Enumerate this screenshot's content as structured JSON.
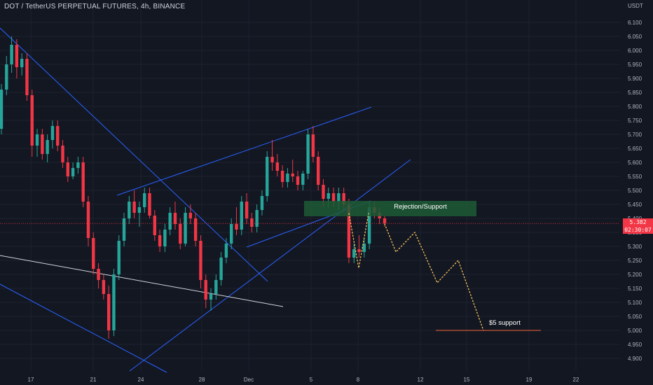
{
  "header": {
    "title": "DOT / TetherUS PERPETUAL FUTURES, 4h, BINANCE"
  },
  "price_axis": {
    "currency": "USDT",
    "labels": [
      "6.100",
      "6.050",
      "6.000",
      "5.950",
      "5.900",
      "5.850",
      "5.800",
      "5.750",
      "5.700",
      "5.650",
      "5.600",
      "5.550",
      "5.500",
      "5.450",
      "5.400",
      "5.350",
      "5.300",
      "5.250",
      "5.200",
      "5.150",
      "5.100",
      "5.050",
      "5.000",
      "4.950",
      "4.900"
    ],
    "current_price": "5.382",
    "countdown": "02:30:07"
  },
  "time_axis": {
    "labels": [
      "17",
      "21",
      "24",
      "28",
      "Dec",
      "5",
      "8",
      "12",
      "15",
      "19",
      "22"
    ]
  },
  "annotations": {
    "zone_label": "Rejection/Support",
    "support_label": "$5 support"
  },
  "colors": {
    "background": "#131722",
    "up_candle": "#26a69a",
    "down_candle": "#f23645",
    "trendline": "#2962ff",
    "white_line": "#d1d4dc",
    "zone_fill": "#1e5a35",
    "projection": "#f7c35b",
    "support_line": "#f0643c"
  },
  "chart_data": {
    "type": "candlestick",
    "symbol": "DOT / TetherUS PERPETUAL FUTURES",
    "timeframe": "4h",
    "exchange": "BINANCE",
    "ylim": [
      4.88,
      6.12
    ],
    "last_price": 5.382,
    "candles": [
      [
        5.72,
        5.88,
        5.7,
        5.86
      ],
      [
        5.86,
        5.98,
        5.84,
        5.95
      ],
      [
        5.95,
        6.05,
        5.92,
        6.02
      ],
      [
        6.02,
        6.04,
        5.9,
        5.94
      ],
      [
        5.94,
        5.99,
        5.91,
        5.97
      ],
      [
        5.97,
        5.99,
        5.82,
        5.84
      ],
      [
        5.84,
        5.86,
        5.62,
        5.66
      ],
      [
        5.66,
        5.72,
        5.62,
        5.7
      ],
      [
        5.7,
        5.72,
        5.61,
        5.63
      ],
      [
        5.63,
        5.7,
        5.6,
        5.68
      ],
      [
        5.68,
        5.75,
        5.65,
        5.73
      ],
      [
        5.73,
        5.75,
        5.64,
        5.66
      ],
      [
        5.66,
        5.68,
        5.58,
        5.6
      ],
      [
        5.6,
        5.62,
        5.53,
        5.55
      ],
      [
        5.55,
        5.6,
        5.54,
        5.58
      ],
      [
        5.58,
        5.62,
        5.56,
        5.6
      ],
      [
        5.6,
        5.62,
        5.44,
        5.46
      ],
      [
        5.46,
        5.48,
        5.3,
        5.33
      ],
      [
        5.33,
        5.35,
        5.2,
        5.22
      ],
      [
        5.22,
        5.24,
        5.15,
        5.18
      ],
      [
        5.18,
        5.2,
        5.11,
        5.13
      ],
      [
        5.13,
        5.16,
        4.97,
        5.0
      ],
      [
        5.0,
        5.22,
        4.98,
        5.2
      ],
      [
        5.2,
        5.34,
        5.18,
        5.32
      ],
      [
        5.32,
        5.42,
        5.3,
        5.4
      ],
      [
        5.4,
        5.48,
        5.38,
        5.46
      ],
      [
        5.46,
        5.5,
        5.4,
        5.42
      ],
      [
        5.42,
        5.46,
        5.37,
        5.44
      ],
      [
        5.44,
        5.51,
        5.42,
        5.49
      ],
      [
        5.49,
        5.51,
        5.4,
        5.41
      ],
      [
        5.41,
        5.43,
        5.32,
        5.34
      ],
      [
        5.34,
        5.36,
        5.28,
        5.3
      ],
      [
        5.3,
        5.38,
        5.28,
        5.36
      ],
      [
        5.36,
        5.44,
        5.34,
        5.42
      ],
      [
        5.42,
        5.46,
        5.36,
        5.38
      ],
      [
        5.38,
        5.4,
        5.29,
        5.31
      ],
      [
        5.31,
        5.44,
        5.3,
        5.42
      ],
      [
        5.42,
        5.45,
        5.38,
        5.4
      ],
      [
        5.4,
        5.42,
        5.3,
        5.32
      ],
      [
        5.32,
        5.34,
        5.15,
        5.18
      ],
      [
        5.18,
        5.2,
        5.08,
        5.11
      ],
      [
        5.11,
        5.15,
        5.07,
        5.13
      ],
      [
        5.13,
        5.2,
        5.11,
        5.18
      ],
      [
        5.18,
        5.28,
        5.16,
        5.26
      ],
      [
        5.26,
        5.33,
        5.24,
        5.31
      ],
      [
        5.31,
        5.4,
        5.29,
        5.38
      ],
      [
        5.38,
        5.44,
        5.34,
        5.36
      ],
      [
        5.36,
        5.48,
        5.34,
        5.46
      ],
      [
        5.46,
        5.49,
        5.38,
        5.4
      ],
      [
        5.4,
        5.42,
        5.35,
        5.37
      ],
      [
        5.37,
        5.45,
        5.35,
        5.43
      ],
      [
        5.43,
        5.5,
        5.41,
        5.48
      ],
      [
        5.48,
        5.64,
        5.46,
        5.62
      ],
      [
        5.62,
        5.68,
        5.57,
        5.6
      ],
      [
        5.6,
        5.63,
        5.55,
        5.57
      ],
      [
        5.57,
        5.59,
        5.51,
        5.53
      ],
      [
        5.53,
        5.58,
        5.51,
        5.56
      ],
      [
        5.56,
        5.61,
        5.53,
        5.55
      ],
      [
        5.55,
        5.57,
        5.5,
        5.52
      ],
      [
        5.52,
        5.57,
        5.5,
        5.56
      ],
      [
        5.56,
        5.72,
        5.54,
        5.7
      ],
      [
        5.7,
        5.73,
        5.6,
        5.62
      ],
      [
        5.62,
        5.64,
        5.5,
        5.52
      ],
      [
        5.52,
        5.54,
        5.44,
        5.47
      ],
      [
        5.47,
        5.51,
        5.44,
        5.49
      ],
      [
        5.49,
        5.51,
        5.44,
        5.46
      ],
      [
        5.46,
        5.51,
        5.43,
        5.49
      ],
      [
        5.49,
        5.51,
        5.43,
        5.45
      ],
      [
        5.45,
        5.47,
        5.24,
        5.26
      ],
      [
        5.26,
        5.31,
        5.24,
        5.29
      ],
      [
        5.29,
        5.34,
        5.26,
        5.28
      ],
      [
        5.28,
        5.33,
        5.26,
        5.31
      ],
      [
        5.31,
        5.46,
        5.29,
        5.44
      ],
      [
        5.44,
        5.46,
        5.4,
        5.42
      ],
      [
        5.42,
        5.44,
        5.38,
        5.4
      ],
      [
        5.4,
        5.41,
        5.37,
        5.382
      ]
    ],
    "projection_path": [
      [
        5.38,
        0
      ],
      [
        5.28,
        1
      ],
      [
        5.35,
        2
      ],
      [
        5.17,
        3
      ],
      [
        5.25,
        4
      ],
      [
        5.0,
        5
      ]
    ],
    "zone": {
      "label": "Rejection/Support",
      "from": 5.415,
      "to": 5.465
    },
    "support_level": {
      "label": "$5 support",
      "price": 5.0
    }
  }
}
